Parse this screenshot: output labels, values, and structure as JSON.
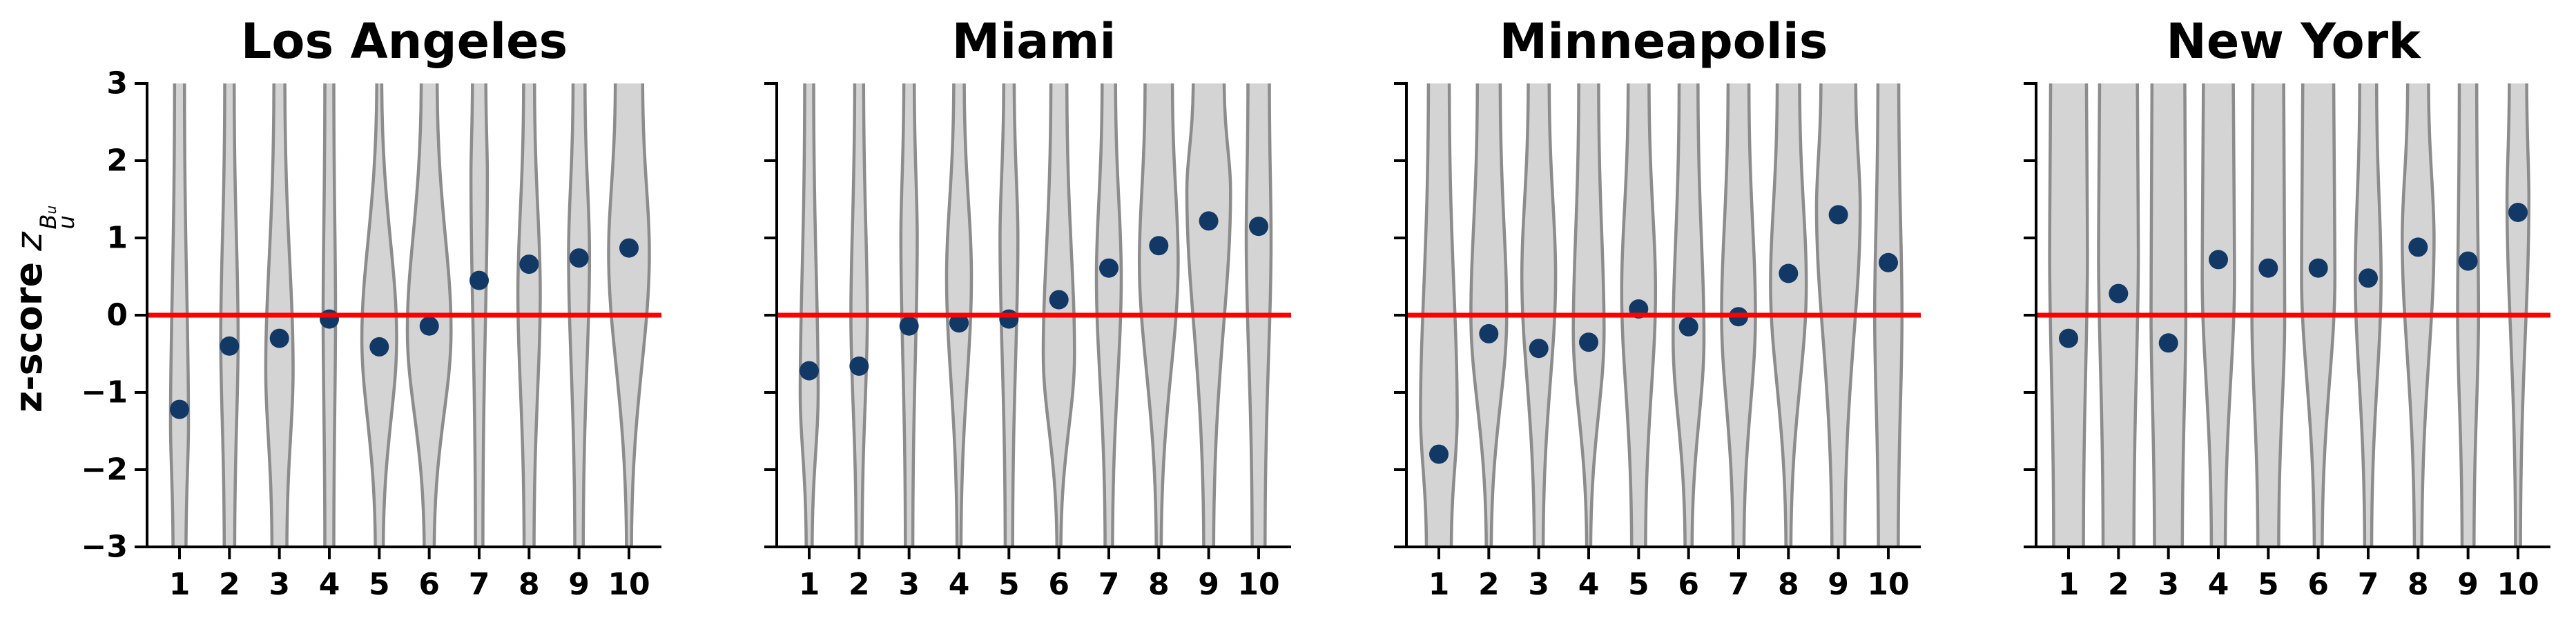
{
  "figure": {
    "ylabel": {
      "prefix": "z-score",
      "base": "z",
      "base_sub": "u",
      "sup_base": "B",
      "sup_sub": "u"
    },
    "ytick_labels": [
      "3",
      "2",
      "1",
      "0",
      "−1",
      "−2",
      "−3"
    ],
    "ytick_values": [
      3,
      2,
      1,
      0,
      -1,
      -2,
      -3
    ],
    "xtick_labels": [
      "1",
      "2",
      "3",
      "4",
      "5",
      "6",
      "7",
      "8",
      "9",
      "10"
    ],
    "ylim": [
      -3,
      3
    ],
    "zero_line_y": 0,
    "colors": {
      "dot": "#123866",
      "violin_fill": "#d4d4d4",
      "violin_edge": "#8c8c8c",
      "zero_line": "#ff0000",
      "axis": "#000000",
      "text": "#000000"
    }
  },
  "chart_data": [
    {
      "type": "violin",
      "title": "Los Angeles",
      "x": [
        1,
        2,
        3,
        4,
        5,
        6,
        7,
        8,
        9,
        10
      ],
      "dot_values": [
        -1.22,
        -0.4,
        -0.3,
        -0.05,
        -0.41,
        -0.14,
        0.45,
        0.66,
        0.74,
        0.87
      ],
      "violins": [
        {
          "top": 0.2,
          "max": 0.36,
          "y_max": -1.4,
          "bottom": 0.26
        },
        {
          "top": 0.19,
          "max": 0.35,
          "y_max": -0.3,
          "bottom": 0.21
        },
        {
          "top": 0.22,
          "max": 0.55,
          "y_max": -0.7,
          "bottom": 0.3
        },
        {
          "top": 0.18,
          "max": 0.25,
          "y_max": 0.0,
          "bottom": 0.18
        },
        {
          "top": 0.1,
          "max": 0.7,
          "y_max": -0.3,
          "bottom": 0.16
        },
        {
          "top": 0.32,
          "max": 0.88,
          "y_max": -0.2,
          "bottom": 0.2
        },
        {
          "top": 0.27,
          "max": 0.33,
          "y_max": 1.8,
          "bottom": 0.15
        },
        {
          "top": 0.22,
          "max": 0.45,
          "y_max": 0.3,
          "bottom": 0.2
        },
        {
          "top": 0.24,
          "max": 0.42,
          "y_max": 0.8,
          "bottom": 0.17
        },
        {
          "top": 0.55,
          "max": 0.82,
          "y_max": 0.8,
          "bottom": 0.1
        }
      ]
    },
    {
      "type": "violin",
      "title": "Miami",
      "x": [
        1,
        2,
        3,
        4,
        5,
        6,
        7,
        8,
        9,
        10
      ],
      "dot_values": [
        -0.72,
        -0.66,
        -0.14,
        -0.1,
        -0.05,
        0.2,
        0.61,
        0.9,
        1.22,
        1.15
      ],
      "violins": [
        {
          "top": 0.18,
          "max": 0.36,
          "y_max": -1.0,
          "bottom": 0.12
        },
        {
          "top": 0.18,
          "max": 0.33,
          "y_max": 0.0,
          "bottom": 0.12
        },
        {
          "top": 0.21,
          "max": 0.33,
          "y_max": 1.0,
          "bottom": 0.15
        },
        {
          "top": 0.21,
          "max": 0.5,
          "y_max": 0.5,
          "bottom": 0.08
        },
        {
          "top": 0.21,
          "max": 0.36,
          "y_max": 1.0,
          "bottom": 0.15
        },
        {
          "top": 0.32,
          "max": 0.63,
          "y_max": -0.5,
          "bottom": 0.08
        },
        {
          "top": 0.27,
          "max": 0.5,
          "y_max": 0.5,
          "bottom": 0.15
        },
        {
          "top": 0.55,
          "max": 0.78,
          "y_max": 0.7,
          "bottom": 0.1
        },
        {
          "top": 0.62,
          "max": 0.88,
          "y_max": 1.6,
          "bottom": 0.2
        },
        {
          "top": 0.43,
          "max": 0.5,
          "y_max": 1.0,
          "bottom": 0.26
        }
      ]
    },
    {
      "type": "violin",
      "title": "Minneapolis",
      "x": [
        1,
        2,
        3,
        4,
        5,
        6,
        7,
        8,
        9,
        10
      ],
      "dot_values": [
        -1.8,
        -0.24,
        -0.43,
        -0.35,
        0.08,
        -0.15,
        -0.02,
        0.54,
        1.3,
        0.68
      ],
      "violins": [
        {
          "top": 0.42,
          "max": 0.74,
          "y_max": -1.3,
          "bottom": 0.5
        },
        {
          "top": 0.46,
          "max": 0.72,
          "y_max": 0.0,
          "bottom": 0.1
        },
        {
          "top": 0.42,
          "max": 0.68,
          "y_max": 0.5,
          "bottom": 0.18
        },
        {
          "top": 0.4,
          "max": 0.62,
          "y_max": -0.2,
          "bottom": 0.08
        },
        {
          "top": 0.42,
          "max": 0.68,
          "y_max": 0.3,
          "bottom": 0.28
        },
        {
          "top": 0.38,
          "max": 0.62,
          "y_max": -0.3,
          "bottom": 0.14
        },
        {
          "top": 0.42,
          "max": 0.68,
          "y_max": 0.0,
          "bottom": 0.22
        },
        {
          "top": 0.45,
          "max": 0.72,
          "y_max": 0.4,
          "bottom": 0.1
        },
        {
          "top": 0.7,
          "max": 0.88,
          "y_max": 1.4,
          "bottom": 0.26
        },
        {
          "top": 0.42,
          "max": 0.55,
          "y_max": 0.0,
          "bottom": 0.4
        }
      ]
    },
    {
      "type": "violin",
      "title": "New York",
      "x": [
        1,
        2,
        3,
        4,
        5,
        6,
        7,
        8,
        9,
        10
      ],
      "dot_values": [
        -0.3,
        0.28,
        -0.36,
        0.72,
        0.61,
        0.61,
        0.48,
        0.88,
        0.7,
        1.33
      ],
      "violins": [
        {
          "top": 0.72,
          "max": 0.76,
          "y_max": 0.8,
          "bottom": 0.6
        },
        {
          "top": 0.76,
          "max": 0.8,
          "y_max": 0.8,
          "bottom": 0.62
        },
        {
          "top": 0.66,
          "max": 0.7,
          "y_max": 0.0,
          "bottom": 0.56
        },
        {
          "top": 0.6,
          "max": 0.65,
          "y_max": 0.5,
          "bottom": 0.28
        },
        {
          "top": 0.62,
          "max": 0.66,
          "y_max": 0.0,
          "bottom": 0.42
        },
        {
          "top": 0.62,
          "max": 0.67,
          "y_max": 0.5,
          "bottom": 0.16
        },
        {
          "top": 0.34,
          "max": 0.52,
          "y_max": 0.5,
          "bottom": 0.14
        },
        {
          "top": 0.42,
          "max": 0.64,
          "y_max": 1.0,
          "bottom": 0.15
        },
        {
          "top": 0.35,
          "max": 0.42,
          "y_max": 0.0,
          "bottom": 0.24
        },
        {
          "top": 0.35,
          "max": 0.44,
          "y_max": 1.5,
          "bottom": 0.1
        }
      ]
    }
  ]
}
